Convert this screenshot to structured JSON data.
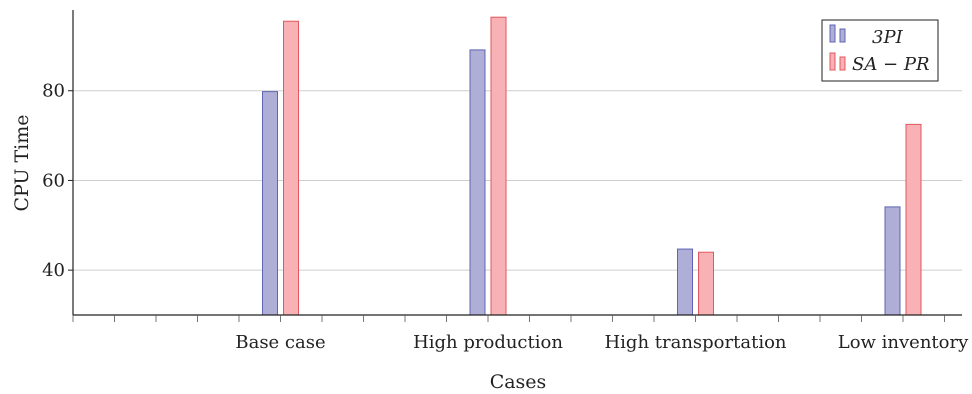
{
  "chart_data": {
    "type": "bar",
    "title": "",
    "xlabel": "Cases",
    "ylabel": "CPU Time",
    "categories": [
      "Base case",
      "High production",
      "High transportation",
      "Low inventory"
    ],
    "series": [
      {
        "name": "3PI",
        "values": [
          79.8,
          89.1,
          44.7,
          54.1
        ],
        "color": "#aeaed6",
        "stroke": "#5f64b3"
      },
      {
        "name": "SA − PR",
        "values": [
          95.5,
          96.4,
          44.0,
          72.5
        ],
        "color": "#f8b2b6",
        "stroke": "#e0575f"
      }
    ],
    "ylim": [
      30,
      98
    ],
    "yticks": [
      40,
      60,
      80
    ],
    "grid": true,
    "legend_position": "top-right"
  }
}
